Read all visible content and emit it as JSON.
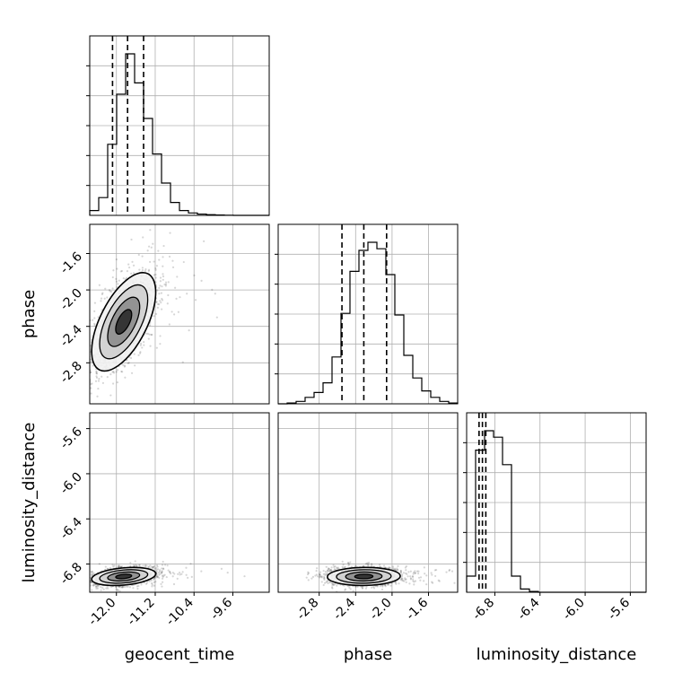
{
  "chart_data": {
    "type": "corner",
    "parameters": [
      "geocent_time",
      "phase",
      "luminosity_distance"
    ],
    "axis_labels": {
      "geocent_time": "geocent_time",
      "phase": "phase",
      "luminosity_distance": "luminosity_distance"
    },
    "ranges": {
      "geocent_time": [
        -12.55,
        -8.85
      ],
      "phase": [
        -3.25,
        -1.28
      ],
      "luminosity_distance": [
        -7.05,
        -5.46
      ]
    },
    "ticks": {
      "geocent_time": [
        "-12.0",
        "-11.2",
        "-10.4",
        "-9.6"
      ],
      "phase": [
        "-2.8",
        "-2.4",
        "-2.0",
        "-1.6"
      ],
      "luminosity_distance": [
        "-6.8",
        "-6.4",
        "-6.0",
        "-5.6"
      ]
    },
    "quantiles": {
      "geocent_time": [
        -12.08,
        -11.77,
        -11.44
      ],
      "phase": [
        -2.55,
        -2.31,
        -2.06
      ],
      "luminosity_distance": [
        -6.94,
        -6.91,
        -6.88
      ]
    },
    "histograms": {
      "geocent_time": [
        0.03,
        0.11,
        0.44,
        0.75,
        1.0,
        0.82,
        0.6,
        0.38,
        0.2,
        0.08,
        0.03,
        0.015,
        0.008,
        0.004,
        0.002,
        0.001,
        0.0,
        0.0,
        0.0,
        0.0
      ],
      "phase": [
        0.0,
        0.005,
        0.015,
        0.04,
        0.07,
        0.13,
        0.29,
        0.56,
        0.82,
        0.95,
        1.0,
        0.96,
        0.8,
        0.55,
        0.3,
        0.16,
        0.08,
        0.04,
        0.015,
        0.005
      ],
      "luminosity_distance": [
        0.1,
        0.88,
        1.0,
        0.96,
        0.79,
        0.1,
        0.02,
        0.005,
        0.0,
        0.0,
        0.0,
        0.0,
        0.0,
        0.0,
        0.0,
        0.0,
        0.0,
        0.0,
        0.0,
        0.0
      ]
    },
    "pairs": [
      {
        "x": "geocent_time",
        "y": "phase",
        "mean": [
          -11.85,
          -2.35
        ],
        "std": [
          0.33,
          0.27
        ],
        "corr": 0.6
      },
      {
        "x": "geocent_time",
        "y": "luminosity_distance",
        "mean": [
          -11.85,
          -6.91
        ],
        "std": [
          0.33,
          0.04
        ],
        "corr": 0.3
      },
      {
        "x": "phase",
        "y": "luminosity_distance",
        "mean": [
          -2.31,
          -6.91
        ],
        "std": [
          0.2,
          0.04
        ],
        "corr": 0.05
      }
    ],
    "contour_levels_sigma": [
      0.5,
      1.0,
      1.5,
      2.0
    ],
    "grid": true,
    "legend": "none"
  }
}
